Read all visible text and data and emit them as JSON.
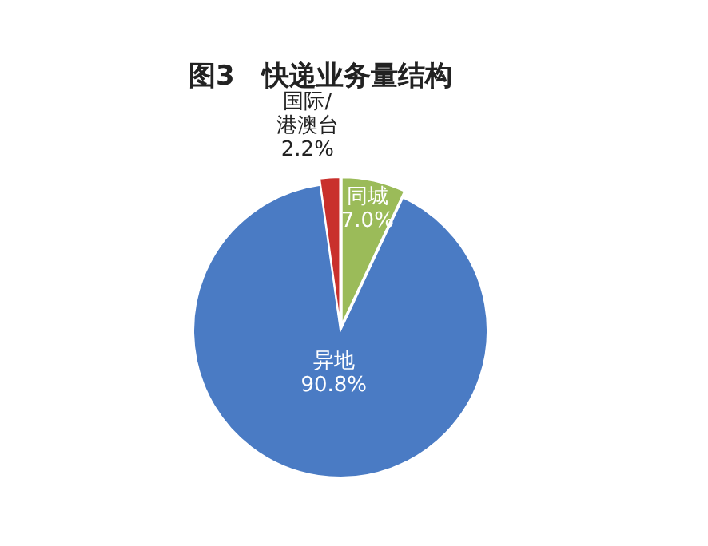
{
  "chart_data": {
    "type": "pie",
    "title": "图3　快递业务量结构",
    "categories": [
      "同城",
      "异地",
      "国际/港澳台"
    ],
    "values": [
      7.0,
      90.8,
      2.2
    ],
    "colors": [
      "#9bbb59",
      "#4a7bc4",
      "#c9302c"
    ],
    "value_labels": [
      "7.0%",
      "90.8%",
      "2.2%"
    ]
  }
}
